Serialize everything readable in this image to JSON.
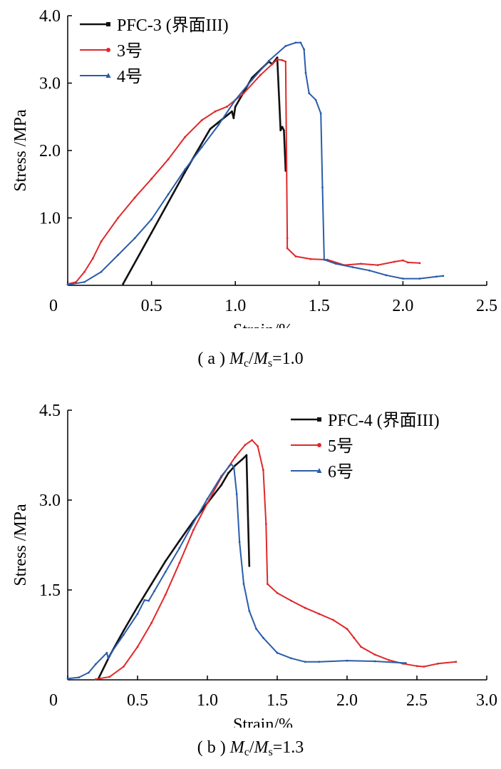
{
  "colors": {
    "black": "#111111",
    "red": "#e0282a",
    "blue": "#2a5caa"
  },
  "chart_data": [
    {
      "type": "line",
      "xlabel": "Strain/%",
      "ylabel": "Stress /MPa",
      "caption": {
        "pre": "( a ) ",
        "m1": "M",
        "sub1": "c",
        "slash": "/",
        "m2": "M",
        "sub2": "s",
        "post": "=1.0"
      },
      "xlim": [
        0,
        2.5
      ],
      "ylim": [
        0,
        4.0
      ],
      "x_ticks": [
        "0",
        "0.5",
        "1.0",
        "1.5",
        "2.0",
        "2.5"
      ],
      "x_tick_values": [
        0,
        0.5,
        1.0,
        1.5,
        2.0,
        2.5
      ],
      "y_ticks": [
        "1.0",
        "2.0",
        "3.0",
        "4.0"
      ],
      "y_tick_values": [
        1.0,
        2.0,
        3.0,
        4.0
      ],
      "legend_position": "top-left",
      "series": [
        {
          "name": "PFC-3 (界面III)",
          "color": "#111111",
          "marker": "square",
          "points": [
            [
              0.33,
              0.02
            ],
            [
              0.5,
              0.78
            ],
            [
              0.7,
              1.68
            ],
            [
              0.85,
              2.32
            ],
            [
              0.98,
              2.58
            ],
            [
              0.99,
              2.48
            ],
            [
              1.0,
              2.65
            ],
            [
              1.1,
              3.08
            ],
            [
              1.2,
              3.32
            ],
            [
              1.22,
              3.28
            ],
            [
              1.25,
              3.38
            ],
            [
              1.27,
              2.3
            ],
            [
              1.28,
              2.35
            ],
            [
              1.29,
              2.3
            ],
            [
              1.3,
              1.7
            ]
          ]
        },
        {
          "name": "3号",
          "color": "#e0282a",
          "marker": "circle",
          "points": [
            [
              0.0,
              0.02
            ],
            [
              0.05,
              0.05
            ],
            [
              0.1,
              0.2
            ],
            [
              0.15,
              0.4
            ],
            [
              0.2,
              0.65
            ],
            [
              0.3,
              1.0
            ],
            [
              0.4,
              1.3
            ],
            [
              0.5,
              1.58
            ],
            [
              0.6,
              1.87
            ],
            [
              0.7,
              2.2
            ],
            [
              0.8,
              2.45
            ],
            [
              0.88,
              2.58
            ],
            [
              0.95,
              2.65
            ],
            [
              1.05,
              2.85
            ],
            [
              1.15,
              3.12
            ],
            [
              1.22,
              3.28
            ],
            [
              1.25,
              3.35
            ],
            [
              1.28,
              3.34
            ],
            [
              1.3,
              3.32
            ],
            [
              1.31,
              0.7
            ],
            [
              1.31,
              0.55
            ],
            [
              1.36,
              0.43
            ],
            [
              1.45,
              0.39
            ],
            [
              1.55,
              0.38
            ],
            [
              1.65,
              0.3
            ],
            [
              1.75,
              0.32
            ],
            [
              1.85,
              0.3
            ],
            [
              1.95,
              0.35
            ],
            [
              2.0,
              0.37
            ],
            [
              2.03,
              0.34
            ],
            [
              2.1,
              0.33
            ]
          ]
        },
        {
          "name": "4号",
          "color": "#2a5caa",
          "marker": "triangle",
          "points": [
            [
              0.0,
              0.01
            ],
            [
              0.1,
              0.05
            ],
            [
              0.2,
              0.2
            ],
            [
              0.3,
              0.45
            ],
            [
              0.4,
              0.7
            ],
            [
              0.5,
              0.98
            ],
            [
              0.6,
              1.35
            ],
            [
              0.7,
              1.72
            ],
            [
              0.8,
              2.05
            ],
            [
              0.9,
              2.38
            ],
            [
              1.0,
              2.75
            ],
            [
              1.1,
              3.05
            ],
            [
              1.2,
              3.33
            ],
            [
              1.3,
              3.55
            ],
            [
              1.36,
              3.6
            ],
            [
              1.39,
              3.6
            ],
            [
              1.41,
              3.5
            ],
            [
              1.42,
              3.15
            ],
            [
              1.44,
              2.85
            ],
            [
              1.48,
              2.75
            ],
            [
              1.51,
              2.55
            ],
            [
              1.52,
              1.45
            ],
            [
              1.53,
              0.38
            ],
            [
              1.6,
              0.32
            ],
            [
              1.7,
              0.27
            ],
            [
              1.8,
              0.22
            ],
            [
              1.9,
              0.15
            ],
            [
              2.0,
              0.1
            ],
            [
              2.1,
              0.1
            ],
            [
              2.2,
              0.13
            ],
            [
              2.24,
              0.14
            ]
          ]
        }
      ]
    },
    {
      "type": "line",
      "xlabel": "Strain/%",
      "ylabel": "Stress /MPa",
      "caption": {
        "pre": "( b ) ",
        "m1": "M",
        "sub1": "c",
        "slash": "/",
        "m2": "M",
        "sub2": "s",
        "post": "=1.3"
      },
      "xlim": [
        0,
        3.0
      ],
      "ylim": [
        0,
        4.5
      ],
      "x_ticks": [
        "0",
        "0.5",
        "1.0",
        "1.5",
        "2.0",
        "2.5",
        "3.0"
      ],
      "x_tick_values": [
        0,
        0.5,
        1.0,
        1.5,
        2.0,
        2.5,
        3.0
      ],
      "y_ticks": [
        "1.5",
        "3.0",
        "4.5"
      ],
      "y_tick_values": [
        1.5,
        3.0,
        4.5
      ],
      "legend_position": "top-right",
      "series": [
        {
          "name": "PFC-4 (界面III)",
          "color": "#111111",
          "marker": "square",
          "points": [
            [
              0.22,
              0.02
            ],
            [
              0.3,
              0.4
            ],
            [
              0.4,
              0.82
            ],
            [
              0.5,
              1.22
            ],
            [
              0.6,
              1.6
            ],
            [
              0.7,
              1.98
            ],
            [
              0.8,
              2.32
            ],
            [
              0.9,
              2.65
            ],
            [
              1.0,
              2.95
            ],
            [
              1.1,
              3.25
            ],
            [
              1.15,
              3.45
            ],
            [
              1.2,
              3.58
            ],
            [
              1.25,
              3.68
            ],
            [
              1.28,
              3.75
            ],
            [
              1.29,
              2.8
            ],
            [
              1.3,
              1.9
            ]
          ]
        },
        {
          "name": "5号",
          "color": "#e0282a",
          "marker": "circle",
          "points": [
            [
              0.2,
              0.01
            ],
            [
              0.3,
              0.05
            ],
            [
              0.4,
              0.22
            ],
            [
              0.5,
              0.55
            ],
            [
              0.6,
              0.95
            ],
            [
              0.7,
              1.42
            ],
            [
              0.8,
              1.95
            ],
            [
              0.9,
              2.5
            ],
            [
              1.0,
              2.95
            ],
            [
              1.1,
              3.38
            ],
            [
              1.2,
              3.72
            ],
            [
              1.27,
              3.92
            ],
            [
              1.32,
              4.0
            ],
            [
              1.36,
              3.9
            ],
            [
              1.4,
              3.5
            ],
            [
              1.42,
              2.6
            ],
            [
              1.43,
              1.6
            ],
            [
              1.5,
              1.45
            ],
            [
              1.6,
              1.32
            ],
            [
              1.7,
              1.2
            ],
            [
              1.8,
              1.1
            ],
            [
              1.9,
              1.0
            ],
            [
              2.0,
              0.85
            ],
            [
              2.05,
              0.7
            ],
            [
              2.1,
              0.55
            ],
            [
              2.2,
              0.42
            ],
            [
              2.3,
              0.33
            ],
            [
              2.4,
              0.27
            ],
            [
              2.5,
              0.23
            ],
            [
              2.55,
              0.22
            ],
            [
              2.65,
              0.27
            ],
            [
              2.78,
              0.3
            ]
          ]
        },
        {
          "name": "6号",
          "color": "#2a5caa",
          "marker": "triangle",
          "points": [
            [
              0.0,
              0.02
            ],
            [
              0.08,
              0.04
            ],
            [
              0.15,
              0.12
            ],
            [
              0.2,
              0.26
            ],
            [
              0.28,
              0.45
            ],
            [
              0.29,
              0.36
            ],
            [
              0.32,
              0.48
            ],
            [
              0.4,
              0.75
            ],
            [
              0.5,
              1.1
            ],
            [
              0.55,
              1.33
            ],
            [
              0.58,
              1.32
            ],
            [
              0.62,
              1.48
            ],
            [
              0.7,
              1.8
            ],
            [
              0.8,
              2.2
            ],
            [
              0.9,
              2.62
            ],
            [
              1.0,
              3.02
            ],
            [
              1.1,
              3.4
            ],
            [
              1.17,
              3.6
            ],
            [
              1.19,
              3.55
            ],
            [
              1.21,
              3.1
            ],
            [
              1.23,
              2.3
            ],
            [
              1.26,
              1.6
            ],
            [
              1.3,
              1.15
            ],
            [
              1.35,
              0.85
            ],
            [
              1.4,
              0.7
            ],
            [
              1.5,
              0.45
            ],
            [
              1.6,
              0.36
            ],
            [
              1.7,
              0.3
            ],
            [
              1.8,
              0.3
            ],
            [
              2.0,
              0.32
            ],
            [
              2.2,
              0.31
            ],
            [
              2.42,
              0.28
            ]
          ]
        }
      ]
    }
  ]
}
